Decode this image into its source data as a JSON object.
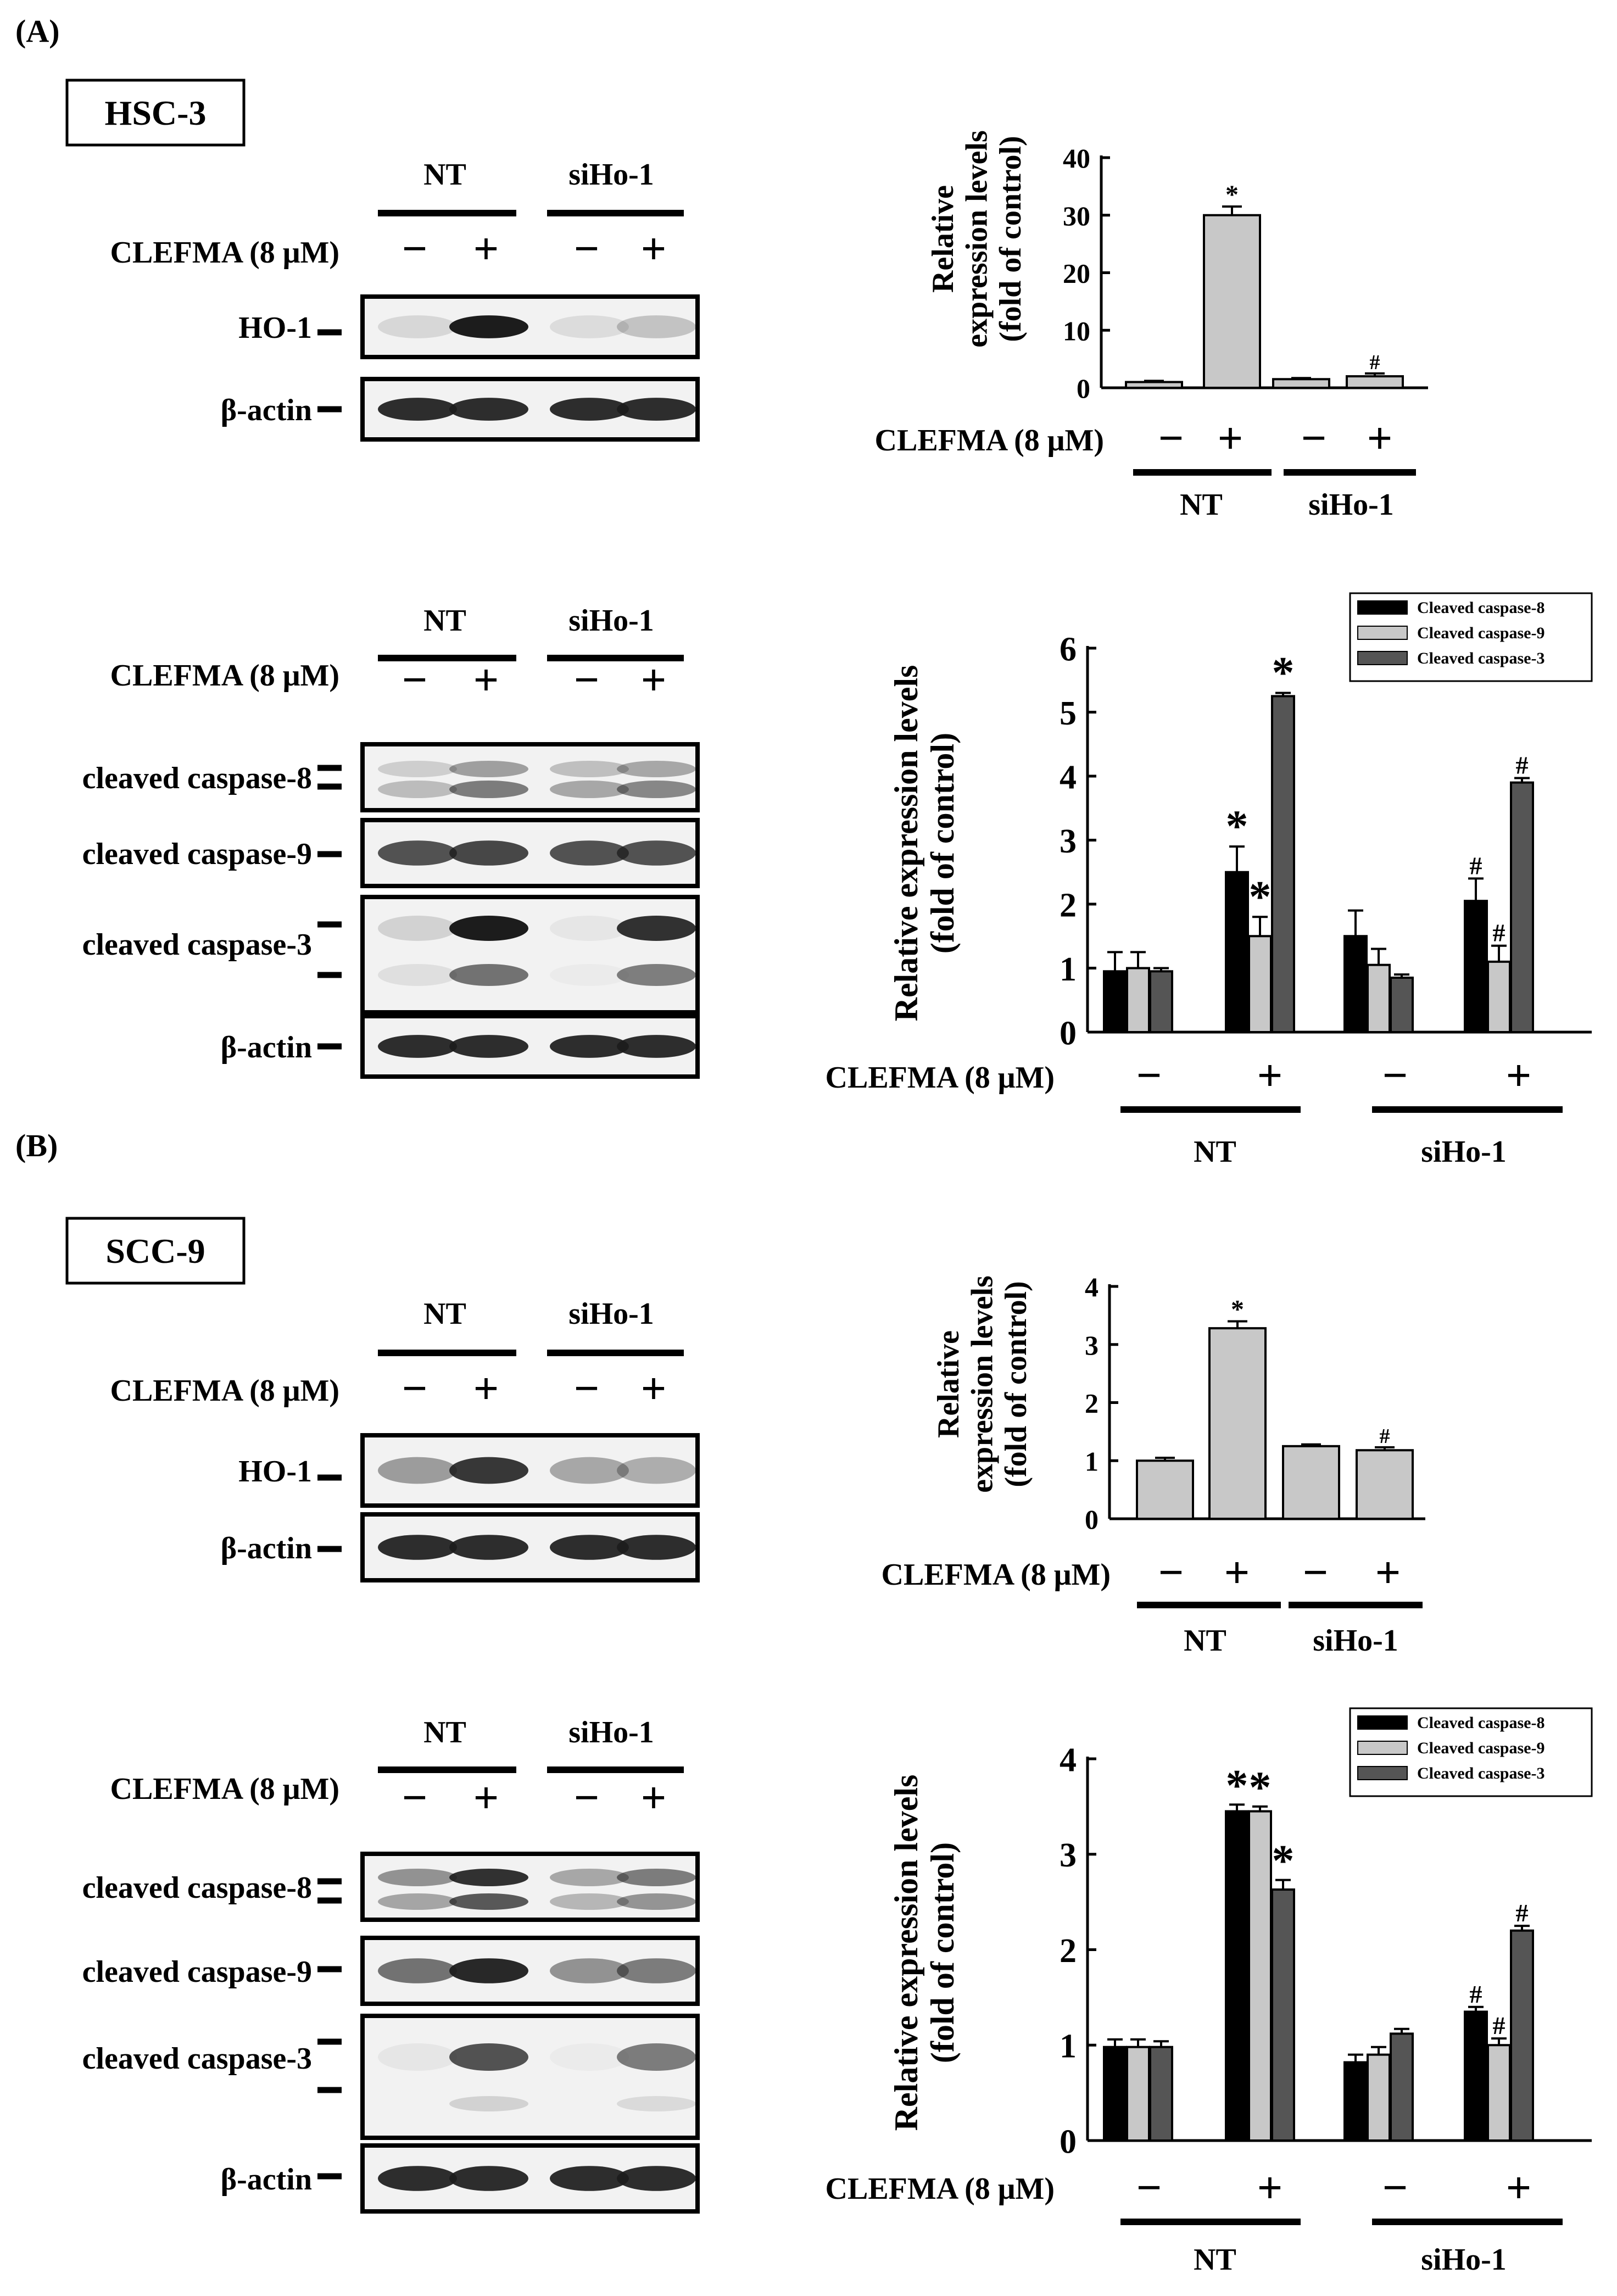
{
  "panels": [
    {
      "label": "(A)",
      "cell_line": "HSC-3"
    },
    {
      "label": "(B)",
      "cell_line": "SCC-9"
    }
  ],
  "blot_labels": {
    "treatment": "CLEFMA (8 μM)",
    "group_nt": "NT",
    "group_si": "siHo-1",
    "minus": "−",
    "plus": "+",
    "ho1": "HO-1",
    "actin": "β-actin",
    "casp8": "cleaved caspase-8",
    "casp9": "cleaved caspase-9",
    "casp3": "cleaved caspase-3"
  },
  "chart_data": [
    {
      "id": "A-ho1",
      "type": "bar",
      "ylabel_lines": [
        "Relative",
        "expression levels",
        "(fold of control)"
      ],
      "ylim": [
        0,
        40
      ],
      "yticks": [
        0,
        10,
        20,
        30,
        40
      ],
      "categories": [
        "NT −",
        "NT +",
        "siHo-1 −",
        "siHo-1 +"
      ],
      "values": [
        1.0,
        30.0,
        1.5,
        2.0
      ],
      "errors": [
        0.2,
        1.5,
        0.2,
        0.5
      ],
      "markers": [
        "",
        "*",
        "",
        "#"
      ],
      "treatment_label": "CLEFMA (8 μM)",
      "signs": [
        "−",
        "+",
        "−",
        "+"
      ],
      "groups": [
        "NT",
        "siHo-1"
      ],
      "colors": {
        "bar": "#c8c8c8"
      }
    },
    {
      "id": "A-casp",
      "type": "bar",
      "ylabel_lines": [
        "Relative expression levels",
        "(fold of control)"
      ],
      "ylim": [
        0,
        6
      ],
      "yticks": [
        0,
        1,
        2,
        3,
        4,
        5,
        6
      ],
      "categories": [
        "NT −",
        "NT +",
        "siHo-1 −",
        "siHo-1 +"
      ],
      "series": [
        {
          "name": "Cleaved caspase-8",
          "values": [
            0.95,
            2.5,
            1.5,
            2.05
          ],
          "errors": [
            0.3,
            0.4,
            0.4,
            0.35
          ],
          "markers": [
            "",
            "*",
            "",
            "#"
          ]
        },
        {
          "name": "Cleaved caspase-9",
          "values": [
            1.0,
            1.5,
            1.05,
            1.1
          ],
          "errors": [
            0.25,
            0.3,
            0.25,
            0.25
          ],
          "markers": [
            "",
            "*",
            "",
            "#"
          ]
        },
        {
          "name": "Cleaved caspase-3",
          "values": [
            0.95,
            5.25,
            0.85,
            3.9
          ],
          "errors": [
            0.05,
            0.05,
            0.05,
            0.07
          ],
          "markers": [
            "",
            "*",
            "",
            "#"
          ]
        }
      ],
      "treatment_label": "CLEFMA (8 μM)",
      "signs": [
        "−",
        "+",
        "−",
        "+"
      ],
      "groups": [
        "NT",
        "siHo-1"
      ],
      "legend": "top-right",
      "colors": {
        "series": [
          "#000000",
          "#c8c8c8",
          "#555555"
        ]
      }
    },
    {
      "id": "B-ho1",
      "type": "bar",
      "ylabel_lines": [
        "Relative",
        "expression levels",
        "(fold of control)"
      ],
      "ylim": [
        0,
        4
      ],
      "yticks": [
        0,
        1,
        2,
        3,
        4
      ],
      "categories": [
        "NT −",
        "NT +",
        "siHo-1 −",
        "siHo-1 +"
      ],
      "values": [
        1.0,
        3.28,
        1.25,
        1.18
      ],
      "errors": [
        0.05,
        0.12,
        0.03,
        0.05
      ],
      "markers": [
        "",
        "*",
        "",
        "#"
      ],
      "treatment_label": "CLEFMA (8 μM)",
      "signs": [
        "−",
        "+",
        "−",
        "+"
      ],
      "groups": [
        "NT",
        "siHo-1"
      ],
      "colors": {
        "bar": "#c8c8c8"
      }
    },
    {
      "id": "B-casp",
      "type": "bar",
      "ylabel_lines": [
        "Relative expression levels",
        "(fold of control)"
      ],
      "ylim": [
        0,
        4
      ],
      "yticks": [
        0,
        1,
        2,
        3,
        4
      ],
      "categories": [
        "NT −",
        "NT +",
        "siHo-1 −",
        "siHo-1 +"
      ],
      "series": [
        {
          "name": "Cleaved caspase-8",
          "values": [
            0.98,
            3.45,
            0.82,
            1.35
          ],
          "errors": [
            0.08,
            0.07,
            0.08,
            0.05
          ],
          "markers": [
            "",
            "*",
            "",
            "#"
          ]
        },
        {
          "name": "Cleaved caspase-9",
          "values": [
            0.98,
            3.45,
            0.9,
            1.0
          ],
          "errors": [
            0.08,
            0.05,
            0.08,
            0.07
          ],
          "markers": [
            "",
            "*",
            "",
            "#"
          ]
        },
        {
          "name": "Cleaved caspase-3",
          "values": [
            0.98,
            2.63,
            1.12,
            2.2
          ],
          "errors": [
            0.06,
            0.1,
            0.05,
            0.05
          ],
          "markers": [
            "",
            "*",
            "",
            "#"
          ]
        }
      ],
      "treatment_label": "CLEFMA (8 μM)",
      "signs": [
        "−",
        "+",
        "−",
        "+"
      ],
      "groups": [
        "NT",
        "siHo-1"
      ],
      "legend": "top-right",
      "colors": {
        "series": [
          "#000000",
          "#c8c8c8",
          "#555555"
        ]
      }
    }
  ]
}
